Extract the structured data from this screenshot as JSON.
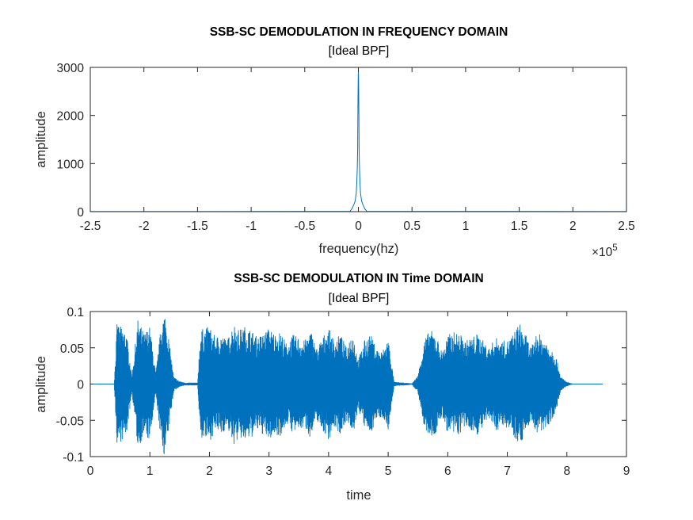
{
  "chart_data": [
    {
      "type": "line",
      "title": "SSB-SC DEMODULATION IN FREQUENCY DOMAIN",
      "subtitle": "[Ideal BPF]",
      "xlabel": "frequency(hz)",
      "ylabel": "amplitude",
      "x_exponent_label": "×10",
      "x_exponent": "5",
      "xlim": [
        -250000,
        250000
      ],
      "ylim": [
        0,
        3000
      ],
      "x_ticks": [
        -250000,
        -200000,
        -150000,
        -100000,
        -50000,
        0,
        50000,
        100000,
        150000,
        200000,
        250000
      ],
      "x_tick_labels": [
        "-2.5",
        "-2",
        "-1.5",
        "-1",
        "-0.5",
        "0",
        "0.5",
        "1",
        "1.5",
        "2",
        "2.5"
      ],
      "y_ticks": [
        0,
        1000,
        2000,
        3000
      ],
      "y_tick_labels": [
        "0",
        "1000",
        "2000",
        "3000"
      ],
      "grid": false,
      "series": [
        {
          "color": "#0072BD",
          "x": [
            -250000,
            -8000,
            -6000,
            -4000,
            -3000,
            -2500,
            -2000,
            -1500,
            -1000,
            -700,
            -500,
            -300,
            -150,
            0,
            150,
            300,
            500,
            700,
            1000,
            1500,
            2000,
            2500,
            3000,
            4000,
            6000,
            8000,
            250000
          ],
          "y": [
            2,
            5,
            60,
            160,
            220,
            300,
            380,
            600,
            900,
            1300,
            1900,
            2500,
            2800,
            2950,
            2800,
            2500,
            1900,
            1300,
            900,
            600,
            380,
            300,
            220,
            160,
            60,
            5,
            2
          ]
        }
      ]
    },
    {
      "type": "line",
      "title": "SSB-SC DEMODULATION IN Time DOMAIN",
      "subtitle": "[Ideal BPF]",
      "xlabel": "time",
      "ylabel": "amplitude",
      "xlim": [
        0,
        9
      ],
      "ylim": [
        -0.1,
        0.1
      ],
      "x_ticks": [
        0,
        1,
        2,
        3,
        4,
        5,
        6,
        7,
        8,
        9
      ],
      "x_tick_labels": [
        "0",
        "1",
        "2",
        "3",
        "4",
        "5",
        "6",
        "7",
        "8",
        "9"
      ],
      "y_ticks": [
        -0.1,
        -0.05,
        0,
        0.05,
        0.1
      ],
      "y_tick_labels": [
        "-0.1",
        "-0.05",
        "0",
        "0.05",
        "0.1"
      ],
      "grid": false,
      "signal_duration": 8.6,
      "series": [
        {
          "color": "#0072BD",
          "envelope_time": [
            0.0,
            0.4,
            0.45,
            0.5,
            0.6,
            0.7,
            0.8,
            0.9,
            1.0,
            1.1,
            1.2,
            1.25,
            1.3,
            1.4,
            1.5,
            1.6,
            1.8,
            1.85,
            2.0,
            2.1,
            2.2,
            2.3,
            2.4,
            2.5,
            2.6,
            2.7,
            2.8,
            2.9,
            3.0,
            3.1,
            3.2,
            3.3,
            3.4,
            3.5,
            3.6,
            3.7,
            3.8,
            3.9,
            4.0,
            4.1,
            4.2,
            4.3,
            4.4,
            4.5,
            4.6,
            4.7,
            4.8,
            4.9,
            5.0,
            5.1,
            5.4,
            5.5,
            5.6,
            5.7,
            5.8,
            5.9,
            6.0,
            6.1,
            6.2,
            6.3,
            6.4,
            6.5,
            6.6,
            6.7,
            6.8,
            6.9,
            7.0,
            7.1,
            7.2,
            7.3,
            7.4,
            7.5,
            7.6,
            7.7,
            7.8,
            7.9,
            8.0,
            8.1,
            8.6
          ],
          "envelope_max": [
            0.0003,
            0.0005,
            0.085,
            0.08,
            0.075,
            0.012,
            0.09,
            0.07,
            0.08,
            0.015,
            0.09,
            0.1,
            0.075,
            0.01,
            0.004,
            0.002,
            0.002,
            0.075,
            0.08,
            0.065,
            0.07,
            0.06,
            0.085,
            0.075,
            0.08,
            0.075,
            0.065,
            0.07,
            0.078,
            0.07,
            0.072,
            0.055,
            0.068,
            0.065,
            0.06,
            0.075,
            0.05,
            0.065,
            0.078,
            0.06,
            0.07,
            0.05,
            0.075,
            0.035,
            0.06,
            0.07,
            0.05,
            0.045,
            0.065,
            0.003,
            0.001,
            0.012,
            0.06,
            0.075,
            0.07,
            0.045,
            0.068,
            0.072,
            0.07,
            0.06,
            0.065,
            0.07,
            0.06,
            0.05,
            0.065,
            0.06,
            0.06,
            0.07,
            0.085,
            0.07,
            0.05,
            0.072,
            0.065,
            0.055,
            0.045,
            0.01,
            0.003,
            0.0004,
            0.0003
          ]
        }
      ]
    }
  ]
}
